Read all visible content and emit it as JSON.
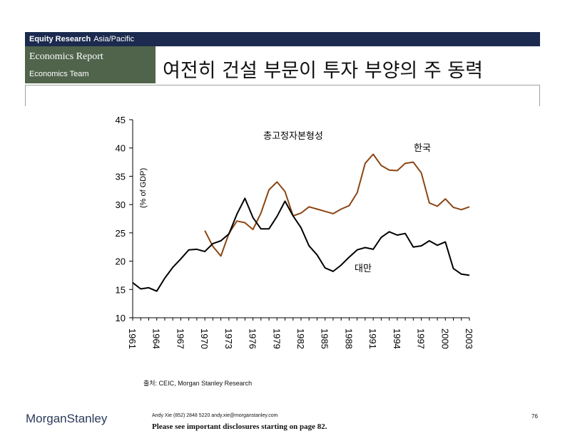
{
  "header": {
    "bar_bold": "Equity Research",
    "bar_region": "Asia/Pacific",
    "report": "Economics Report",
    "team": "Economics Team",
    "title": "여전히 건설 부문이 투자 부양의 주 동력"
  },
  "footer": {
    "logo_a": "Morgan",
    "logo_b": "Stanley",
    "contact": "Andy Xie (852) 2848 5220 andy.xie@morganstanley.com",
    "disclosure": "Please see important disclosures starting on page 82.",
    "page": "76"
  },
  "source": "출처: CEIC, Morgan Stanley Research",
  "colors": {
    "korea": "#8b4513",
    "taiwan": "#000000",
    "header_bar": "#1b2a4e",
    "header_green": "#50644c"
  },
  "chart_data": {
    "type": "line",
    "title": "총고정자본형성",
    "ylabel": "(% of GDP)",
    "xlabel": "",
    "ylim": [
      10,
      45
    ],
    "yticks": [
      10,
      15,
      20,
      25,
      30,
      35,
      40,
      45
    ],
    "xticks": [
      "1961",
      "1964",
      "1967",
      "1970",
      "1973",
      "1976",
      "1979",
      "1982",
      "1985",
      "1988",
      "1991",
      "1994",
      "1997",
      "2000",
      "2003"
    ],
    "x_range": [
      1961,
      2003
    ],
    "series": [
      {
        "name": "한국",
        "years": [
          1970,
          1971,
          1972,
          1973,
          1974,
          1975,
          1976,
          1977,
          1978,
          1979,
          1980,
          1981,
          1982,
          1983,
          1984,
          1985,
          1986,
          1987,
          1988,
          1989,
          1990,
          1991,
          1992,
          1993,
          1994,
          1995,
          1996,
          1997,
          1998,
          1999,
          2000,
          2001,
          2002,
          2003
        ],
        "values": [
          25.4,
          22.6,
          20.9,
          24.9,
          27.1,
          26.8,
          25.6,
          28.5,
          32.6,
          34.0,
          32.3,
          28.0,
          28.5,
          29.6,
          29.2,
          28.8,
          28.4,
          29.2,
          29.8,
          32.1,
          37.3,
          38.9,
          36.9,
          36.1,
          36.0,
          37.3,
          37.5,
          35.6,
          30.3,
          29.7,
          31.0,
          29.5,
          29.1,
          29.6
        ]
      },
      {
        "name": "대만",
        "years": [
          1961,
          1962,
          1963,
          1964,
          1965,
          1966,
          1967,
          1968,
          1969,
          1970,
          1971,
          1972,
          1973,
          1974,
          1975,
          1976,
          1977,
          1978,
          1979,
          1980,
          1981,
          1982,
          1983,
          1984,
          1985,
          1986,
          1987,
          1988,
          1989,
          1990,
          1991,
          1992,
          1993,
          1994,
          1995,
          1996,
          1997,
          1998,
          1999,
          2000,
          2001,
          2002,
          2003
        ],
        "values": [
          16.2,
          15.1,
          15.3,
          14.7,
          17.0,
          18.9,
          20.4,
          22.0,
          22.1,
          21.7,
          23.1,
          23.6,
          24.8,
          28.3,
          31.1,
          27.7,
          25.7,
          25.7,
          27.9,
          30.6,
          28.0,
          25.9,
          22.7,
          21.1,
          18.8,
          18.2,
          19.3,
          20.7,
          22.0,
          22.4,
          22.1,
          24.2,
          25.2,
          24.6,
          24.9,
          22.5,
          22.7,
          23.6,
          22.8,
          23.4,
          18.7,
          17.7,
          17.5
        ]
      }
    ],
    "annotations": [
      "한국",
      "대만"
    ]
  }
}
